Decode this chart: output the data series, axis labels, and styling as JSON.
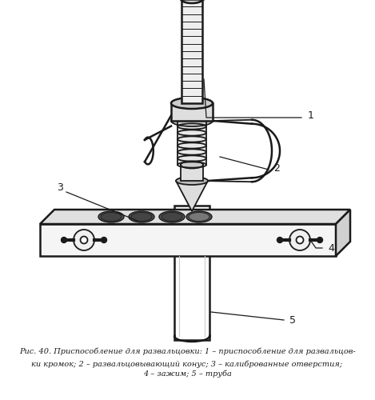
{
  "bg_color": "#ffffff",
  "fig_width": 4.69,
  "fig_height": 5.0,
  "dpi": 100,
  "caption_line1": "Рис. 40. Приспособление для развальцовки: 1 – приспособление для развальцов-",
  "caption_line2": "ки кромок; 2 – развальцовывающий конус; 3 – калиброванные отверстия;",
  "caption_line3": "4 – зажим; 5 – труба",
  "black": "#1a1a1a",
  "gray_light": "#e8e8e8",
  "gray_mid": "#cccccc",
  "gray_dark": "#888888"
}
